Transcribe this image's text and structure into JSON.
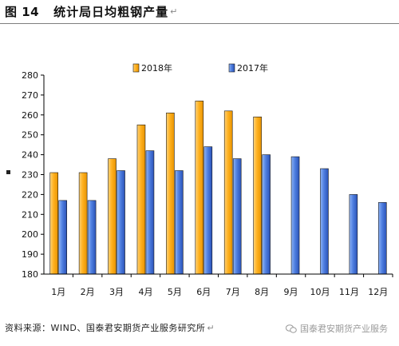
{
  "header": {
    "figure_number": "图 14",
    "title": "统计局日均粗钢产量",
    "mark": "↵"
  },
  "chart_data": {
    "type": "bar",
    "categories": [
      "1月",
      "2月",
      "3月",
      "4月",
      "5月",
      "6月",
      "7月",
      "8月",
      "9月",
      "10月",
      "11月",
      "12月"
    ],
    "series": [
      {
        "name": "2018年",
        "color": "#FFB11F",
        "values": [
          231,
          231,
          238,
          255,
          261,
          267,
          262,
          259,
          null,
          null,
          null,
          null
        ]
      },
      {
        "name": "2017年",
        "color": "#2E62D6",
        "values": [
          217,
          217,
          232,
          242,
          232,
          244,
          238,
          240,
          239,
          233,
          220,
          216
        ]
      }
    ],
    "ylim": [
      180,
      280
    ],
    "yticks": [
      180,
      190,
      200,
      210,
      220,
      230,
      240,
      250,
      260,
      270,
      280
    ],
    "legend_position": "top",
    "grid": false
  },
  "source": {
    "text": "资料来源：WIND、国泰君安期货产业服务研究所",
    "mark": "↵"
  },
  "watermark": {
    "text": "国泰君安期货产业服务"
  }
}
